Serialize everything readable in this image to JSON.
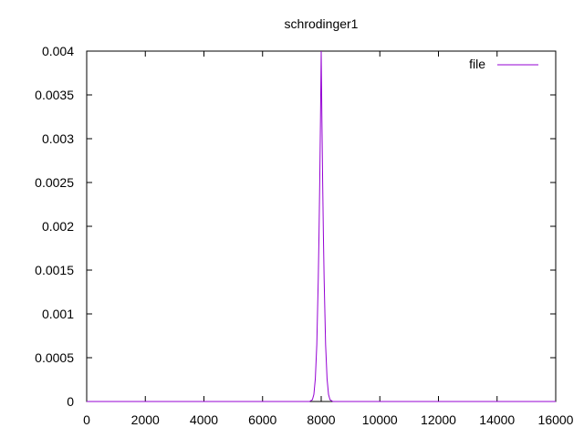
{
  "chart_data": {
    "type": "line",
    "title": "schrodinger1",
    "xlabel": "",
    "ylabel": "",
    "xlim": [
      0,
      16000
    ],
    "ylim": [
      0,
      0.004
    ],
    "x_ticks": [
      "0",
      "2000",
      "4000",
      "6000",
      "8000",
      "10000",
      "12000",
      "14000",
      "16000"
    ],
    "y_ticks": [
      "0",
      "0.0005",
      "0.001",
      "0.0015",
      "0.002",
      "0.0025",
      "0.003",
      "0.0035",
      "0.004"
    ],
    "grid": false,
    "legend_position": "top-right",
    "series": [
      {
        "name": "file",
        "color": "#9400d3",
        "x": [
          0,
          7600,
          7700,
          7750,
          7800,
          7850,
          7900,
          7925,
          7950,
          7975,
          8000,
          8025,
          8050,
          8075,
          8100,
          8150,
          8200,
          8250,
          8300,
          8400,
          16000
        ],
        "y": [
          0,
          0,
          2e-05,
          8e-05,
          0.00026,
          0.00065,
          0.0014,
          0.0019,
          0.0025,
          0.0032,
          0.004,
          0.0032,
          0.0025,
          0.0019,
          0.0014,
          0.00065,
          0.00026,
          8e-05,
          2e-05,
          0,
          0
        ]
      }
    ]
  }
}
